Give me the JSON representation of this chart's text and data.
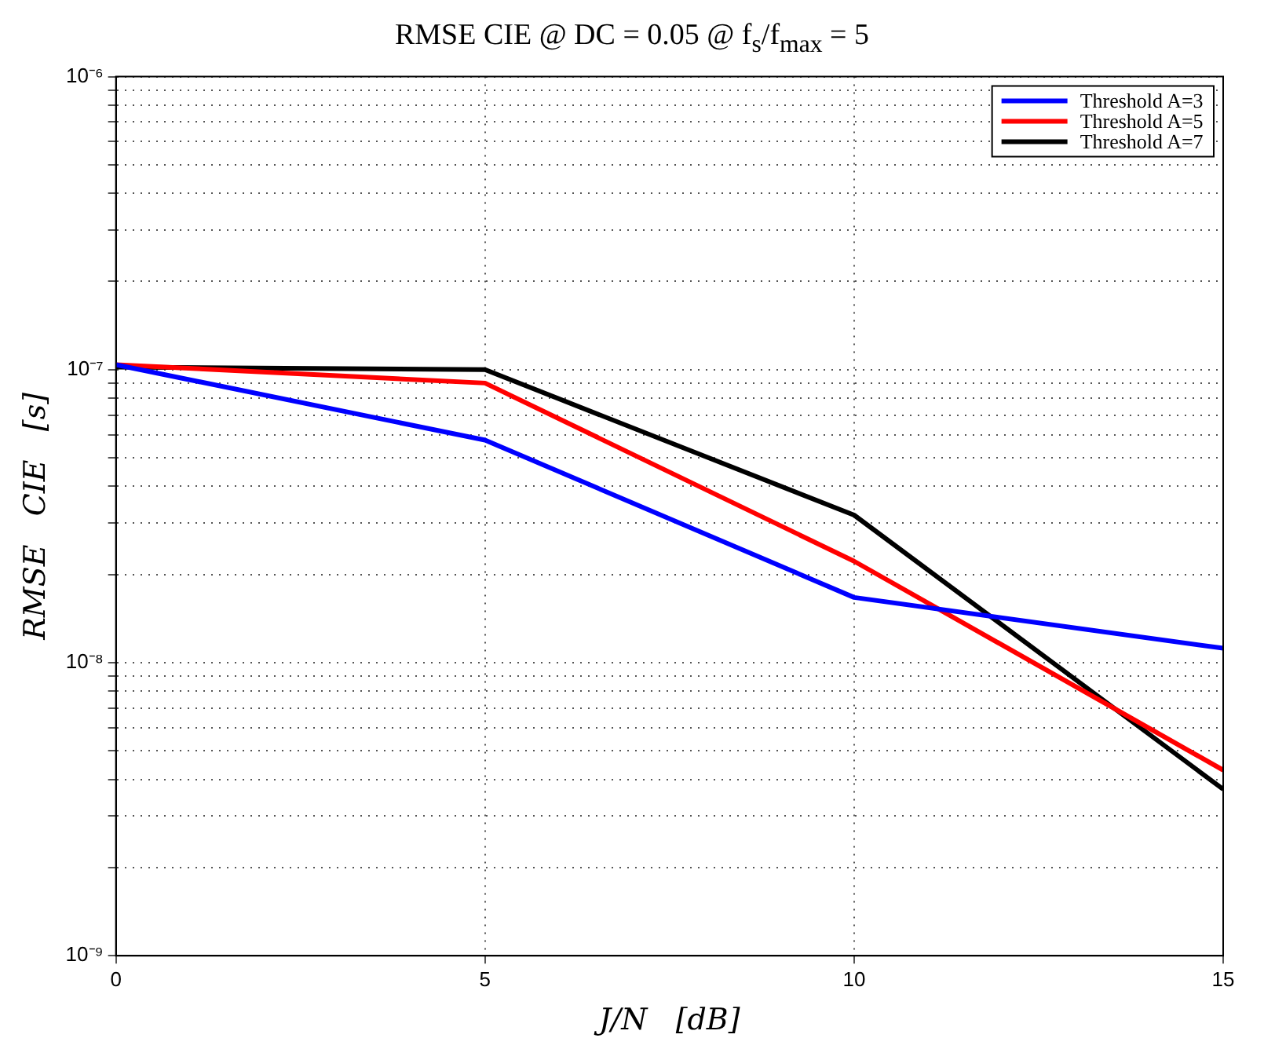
{
  "chart_data": {
    "type": "line",
    "title": "RMSE CIE @ DC = 0.05 @ f$_{s}$/f$_{max}$ = 5",
    "xlabel": "J/N   [dB]",
    "ylabel": "RMSE   CIE   [s]",
    "x": [
      0,
      5,
      10,
      15
    ],
    "series": [
      {
        "name": "Threshold A=3",
        "color": "#0000ff",
        "values": [
          1.04e-07,
          5.75e-08,
          1.67e-08,
          1.12e-08
        ]
      },
      {
        "name": "Threshold A=5",
        "color": "#ff0000",
        "values": [
          1.04e-07,
          9e-08,
          2.22e-08,
          4.3e-09
        ]
      },
      {
        "name": "Threshold A=7",
        "color": "#000000",
        "values": [
          1.02e-07,
          1e-07,
          3.19e-08,
          3.7e-09
        ]
      }
    ],
    "log": "y",
    "xlim": [
      0,
      15
    ],
    "xticks": [
      0,
      5,
      10,
      15
    ],
    "ylim": [
      1e-09,
      1e-06
    ],
    "yticks": [
      {
        "value": 1e-09,
        "label": "10⁻⁹"
      },
      {
        "value": 2e-09,
        "label": null
      },
      {
        "value": 3e-09,
        "label": null
      },
      {
        "value": 4e-09,
        "label": null
      },
      {
        "value": 5e-09,
        "label": null
      },
      {
        "value": 6e-09,
        "label": null
      },
      {
        "value": 7e-09,
        "label": null
      },
      {
        "value": 8e-09,
        "label": null
      },
      {
        "value": 9e-09,
        "label": null
      },
      {
        "value": 1e-08,
        "label": "10⁻⁸"
      },
      {
        "value": 2e-08,
        "label": null
      },
      {
        "value": 3e-08,
        "label": null
      },
      {
        "value": 4e-08,
        "label": null
      },
      {
        "value": 5e-08,
        "label": null
      },
      {
        "value": 6e-08,
        "label": null
      },
      {
        "value": 7e-08,
        "label": null
      },
      {
        "value": 8e-08,
        "label": null
      },
      {
        "value": 9e-08,
        "label": null
      },
      {
        "value": 1e-07,
        "label": "10⁻⁷"
      },
      {
        "value": 2e-07,
        "label": null
      },
      {
        "value": 3e-07,
        "label": null
      },
      {
        "value": 4e-07,
        "label": null
      },
      {
        "value": 5e-07,
        "label": null
      },
      {
        "value": 6e-07,
        "label": null
      },
      {
        "value": 7e-07,
        "label": null
      },
      {
        "value": 8e-07,
        "label": null
      },
      {
        "value": 9e-07,
        "label": null
      },
      {
        "value": 1e-06,
        "label": "10⁻⁶"
      }
    ],
    "grid": true,
    "legend": "top right",
    "marker": "none",
    "line_style": "solid"
  }
}
